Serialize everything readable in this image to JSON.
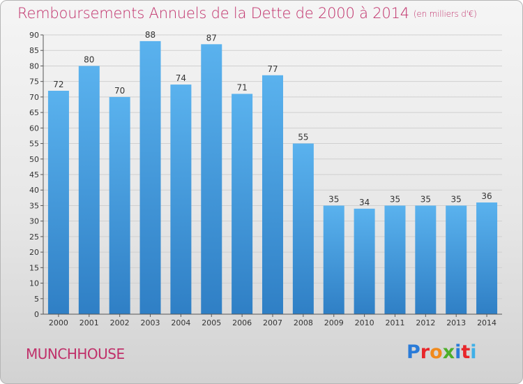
{
  "header": {
    "title": "Remboursements Annuels de la Dette de 2000 à 2014",
    "unit": "(en milliers d'€)"
  },
  "footer": {
    "city": "MUNCHHOUSE",
    "logo_text": "Proxiti",
    "logo_letters": [
      "P",
      "r",
      "o",
      "x",
      "i",
      "t",
      "i"
    ],
    "logo_colors": [
      "#2a7bd8",
      "#e8262a",
      "#f08a1c",
      "#4caf2a",
      "#2a7bd8",
      "#e8262a",
      "#3fb0e8"
    ]
  },
  "colors": {
    "title": "#c0306a",
    "bar_top": "#5ab2ee",
    "bar_bottom": "#2f7fc5",
    "grid": "#cfcfcf",
    "axis": "#555555",
    "text": "#333333"
  },
  "chart_data": {
    "type": "bar",
    "title": "Remboursements Annuels de la Dette de 2000 à 2014",
    "subtitle": "(en milliers d'€)",
    "categories": [
      "2000",
      "2001",
      "2002",
      "2003",
      "2004",
      "2005",
      "2006",
      "2007",
      "2008",
      "2009",
      "2010",
      "2011",
      "2012",
      "2013",
      "2014"
    ],
    "values": [
      72,
      80,
      70,
      88,
      74,
      87,
      71,
      77,
      55,
      35,
      34,
      35,
      35,
      35,
      36
    ],
    "ylim": [
      0,
      90
    ],
    "yticks": [
      0,
      5,
      10,
      15,
      20,
      25,
      30,
      35,
      40,
      45,
      50,
      55,
      60,
      65,
      70,
      75,
      80,
      85,
      90
    ],
    "grid": true,
    "data_labels": true
  }
}
